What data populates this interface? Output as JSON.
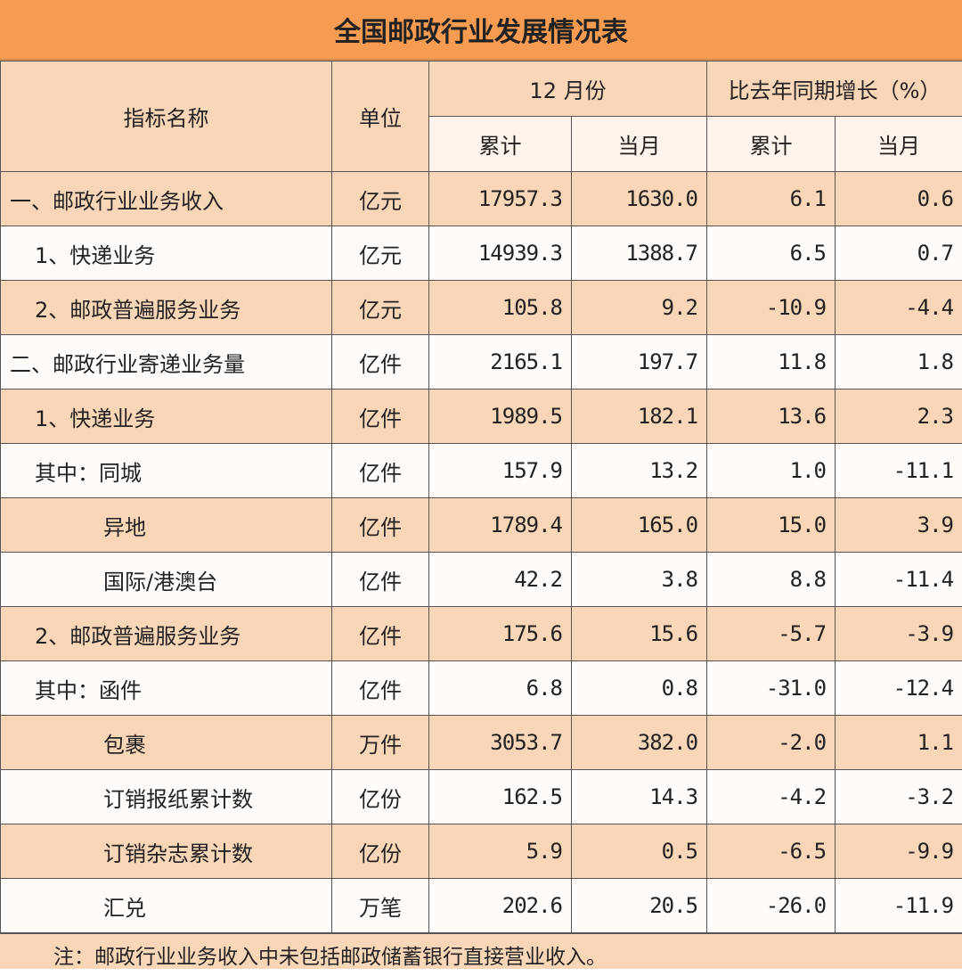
{
  "title": "全国邮政行业发展情况表",
  "header": {
    "name": "指标名称",
    "unit": "单位",
    "period": "12 月份",
    "growth": "比去年同期增长（%）",
    "cumulative": "累计",
    "month": "当月",
    "cumulative2": "累计",
    "month2": "当月"
  },
  "rows": [
    {
      "name": "一、邮政行业业务收入",
      "unit": "亿元",
      "cum": "17957.3",
      "mon": "1630.0",
      "gcum": "6.1",
      "gmon": "0.6"
    },
    {
      "name": "1、快递业务",
      "unit": "亿元",
      "cum": "14939.3",
      "mon": "1388.7",
      "gcum": "6.5",
      "gmon": "0.7"
    },
    {
      "name": "2、邮政普遍服务业务",
      "unit": "亿元",
      "cum": "105.8",
      "mon": "9.2",
      "gcum": "-10.9",
      "gmon": "-4.4"
    },
    {
      "name": "二、邮政行业寄递业务量",
      "unit": "亿件",
      "cum": "2165.1",
      "mon": "197.7",
      "gcum": "11.8",
      "gmon": "1.8"
    },
    {
      "name": "1、快递业务",
      "unit": "亿件",
      "cum": "1989.5",
      "mon": "182.1",
      "gcum": "13.6",
      "gmon": "2.3"
    },
    {
      "name": "其中：同城",
      "unit": "亿件",
      "cum": "157.9",
      "mon": "13.2",
      "gcum": "1.0",
      "gmon": "-11.1"
    },
    {
      "name": "异地",
      "unit": "亿件",
      "cum": "1789.4",
      "mon": "165.0",
      "gcum": "15.0",
      "gmon": "3.9"
    },
    {
      "name": "国际/港澳台",
      "unit": "亿件",
      "cum": "42.2",
      "mon": "3.8",
      "gcum": "8.8",
      "gmon": "-11.4"
    },
    {
      "name": "2、邮政普遍服务业务",
      "unit": "亿件",
      "cum": "175.6",
      "mon": "15.6",
      "gcum": "-5.7",
      "gmon": "-3.9"
    },
    {
      "name": "其中：函件",
      "unit": "亿件",
      "cum": "6.8",
      "mon": "0.8",
      "gcum": "-31.0",
      "gmon": "-12.4"
    },
    {
      "name": "包裹",
      "unit": "万件",
      "cum": "3053.7",
      "mon": "382.0",
      "gcum": "-2.0",
      "gmon": "1.1"
    },
    {
      "name": "订销报纸累计数",
      "unit": "亿份",
      "cum": "162.5",
      "mon": "14.3",
      "gcum": "-4.2",
      "gmon": "-3.2"
    },
    {
      "name": "订销杂志累计数",
      "unit": "亿份",
      "cum": "5.9",
      "mon": "0.5",
      "gcum": "-6.5",
      "gmon": "-9.9"
    },
    {
      "name": "汇兑",
      "unit": "万笔",
      "cum": "202.6",
      "mon": "20.5",
      "gcum": "-26.0",
      "gmon": "-11.9"
    }
  ],
  "note": "注：邮政行业业务收入中未包括邮政储蓄银行直接营业收入。",
  "colors": {
    "title_bg": "#F59B52",
    "shaded_row": "#FAD6B8",
    "light_row": "#FFFBF8"
  }
}
